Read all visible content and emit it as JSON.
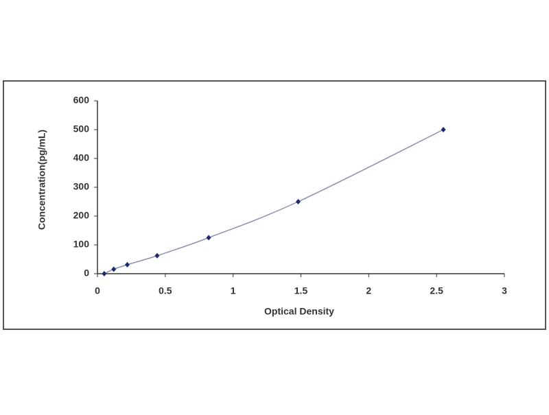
{
  "chart_data": {
    "type": "line",
    "x_label": "Optical Density",
    "y_label": "Concentration(pg/mL)",
    "series": [
      {
        "color": "#1f2a6e",
        "line_color": "#8a8fb0",
        "x": [
          0.05,
          0.12,
          0.22,
          0.44,
          0.82,
          1.48,
          2.55
        ],
        "values": [
          0,
          15.6,
          31.25,
          62.5,
          125,
          250,
          500
        ]
      }
    ],
    "xlim": [
      0,
      3
    ],
    "xticks": [
      0,
      0.5,
      1,
      1.5,
      2,
      2.5,
      3
    ],
    "ylim": [
      0,
      600
    ],
    "yticks": [
      0,
      100,
      200,
      300,
      400,
      500,
      600
    ],
    "grid": false
  }
}
